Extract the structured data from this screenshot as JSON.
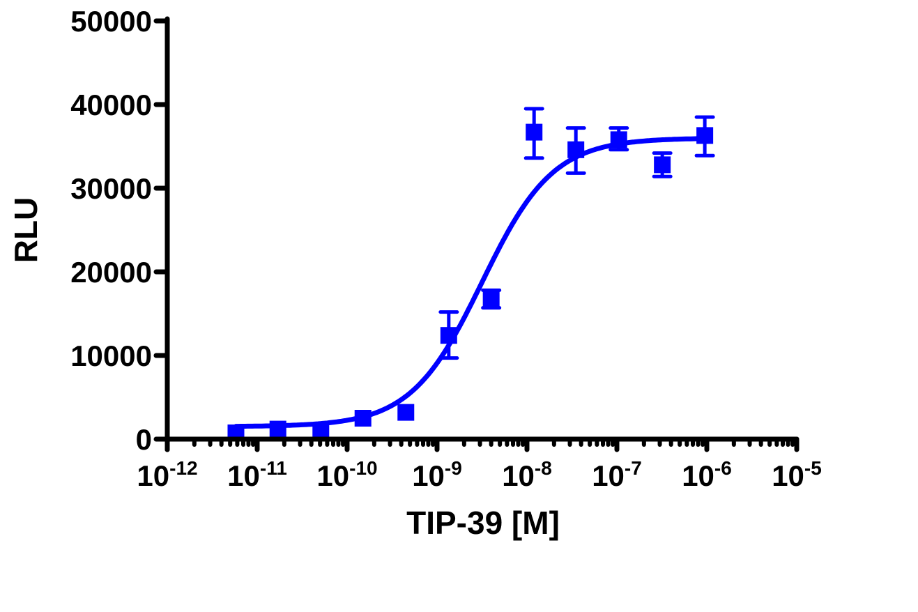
{
  "chart_data": {
    "type": "scatter",
    "title": "",
    "xlabel": "TIP-39 [M]",
    "ylabel": "RLU",
    "xscale": "log",
    "xlim": [
      1e-12,
      1e-05
    ],
    "ylim": [
      0,
      50000
    ],
    "grid": false,
    "legend": null,
    "x_ticks": [
      {
        "exp": -12,
        "label_base": "10",
        "label_exp": "-12"
      },
      {
        "exp": -11,
        "label_base": "10",
        "label_exp": "-11"
      },
      {
        "exp": -10,
        "label_base": "10",
        "label_exp": "-10"
      },
      {
        "exp": -9,
        "label_base": "10",
        "label_exp": "-9"
      },
      {
        "exp": -8,
        "label_base": "10",
        "label_exp": "-8"
      },
      {
        "exp": -7,
        "label_base": "10",
        "label_exp": "-7"
      },
      {
        "exp": -6,
        "label_base": "10",
        "label_exp": "-6"
      },
      {
        "exp": -5,
        "label_base": "10",
        "label_exp": "-5"
      }
    ],
    "y_ticks": [
      0,
      10000,
      20000,
      30000,
      40000,
      50000
    ],
    "series": [
      {
        "name": "TIP-39",
        "color": "#0000ff",
        "marker": "square",
        "points": [
          {
            "x": 5.8e-12,
            "y": 750,
            "err_low": 750,
            "err_high": 750
          },
          {
            "x": 1.7e-11,
            "y": 1200,
            "err_low": 1200,
            "err_high": 1200
          },
          {
            "x": 5.1e-11,
            "y": 900,
            "err_low": 900,
            "err_high": 900
          },
          {
            "x": 1.5e-10,
            "y": 2500,
            "err_low": 2500,
            "err_high": 2500
          },
          {
            "x": 4.5e-10,
            "y": 3200,
            "err_low": 3200,
            "err_high": 3200
          },
          {
            "x": 1.35e-09,
            "y": 12400,
            "err_low": 9700,
            "err_high": 15200
          },
          {
            "x": 4e-09,
            "y": 16700,
            "err_low": 15700,
            "err_high": 17800
          },
          {
            "x": 1.2e-08,
            "y": 36700,
            "err_low": 33600,
            "err_high": 39500
          },
          {
            "x": 3.5e-08,
            "y": 34600,
            "err_low": 31800,
            "err_high": 37200
          },
          {
            "x": 1.05e-07,
            "y": 35800,
            "err_low": 34600,
            "err_high": 37200
          },
          {
            "x": 3.2e-07,
            "y": 32800,
            "err_low": 31400,
            "err_high": 34200
          },
          {
            "x": 9.5e-07,
            "y": 36300,
            "err_low": 33900,
            "err_high": 38500
          }
        ],
        "fit": {
          "model": "sigmoidal dose-response",
          "bottom": 1500,
          "top": 36000,
          "logEC50": -8.5,
          "hill_slope": 1.1,
          "x_range": [
            5.8e-12,
            9.5e-07
          ]
        }
      }
    ]
  }
}
